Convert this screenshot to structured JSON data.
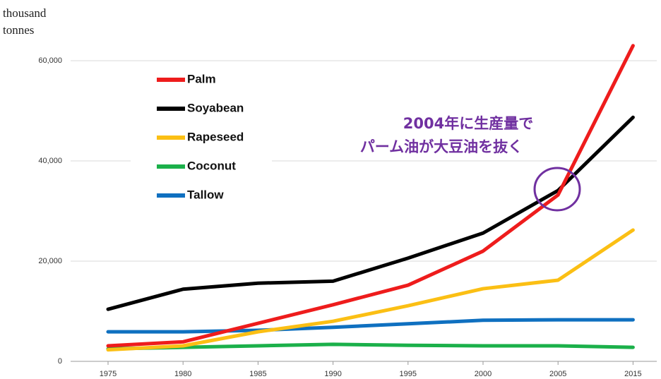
{
  "chart_data": {
    "type": "line",
    "y_label_lines": [
      "thousand",
      "tonnes"
    ],
    "categories": [
      "1975",
      "1980",
      "1985",
      "1990",
      "1995",
      "2000",
      "2005",
      "2015"
    ],
    "series": [
      {
        "name": "Palm",
        "color": "#ee1c1c",
        "values": [
          3100,
          3900,
          7600,
          11300,
          15200,
          22000,
          33200,
          63000
        ]
      },
      {
        "name": "Soyabean",
        "color": "#000000",
        "values": [
          10400,
          14400,
          15600,
          16000,
          20600,
          25600,
          34100,
          48700
        ]
      },
      {
        "name": "Rapeseed",
        "color": "#fbbf14",
        "values": [
          2300,
          3100,
          5900,
          8000,
          11100,
          14500,
          16200,
          26200
        ]
      },
      {
        "name": "Coconut",
        "color": "#1bb04a",
        "values": [
          2500,
          2800,
          3100,
          3400,
          3200,
          3100,
          3100,
          2800
        ]
      },
      {
        "name": "Tallow",
        "color": "#0f70c0",
        "values": [
          5900,
          5900,
          6200,
          6800,
          7500,
          8200,
          8300,
          8300
        ]
      }
    ],
    "ylim": [
      0,
      65000
    ],
    "yticks": [
      {
        "value": 0,
        "label": "0"
      },
      {
        "value": 20000,
        "label": "20,000"
      },
      {
        "value": 40000,
        "label": "40,000"
      },
      {
        "value": 60000,
        "label": "60,000"
      }
    ],
    "grid": true,
    "annotation_lines": [
      "2004年に生産量で",
      "パーム油が大豆油を抜く"
    ]
  }
}
